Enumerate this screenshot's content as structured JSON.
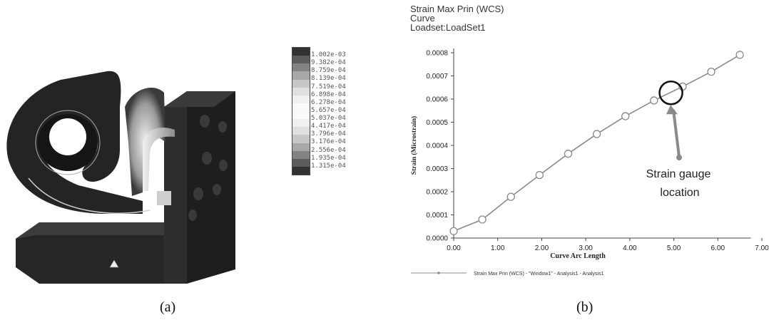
{
  "captions": {
    "a": "(a)",
    "b": "(b)"
  },
  "contour_legend": {
    "labels": [
      "1.002e-03",
      "9.382e-04",
      "8.759e-04",
      "8.139e-04",
      "7.519e-04",
      "6.898e-04",
      "6.278e-04",
      "5.657e-04",
      "5.037e-04",
      "4.417e-04",
      "3.796e-04",
      "3.176e-04",
      "2.556e-04",
      "1.935e-04",
      "1.315e-04"
    ],
    "colors": {
      "high": "#2a2a2a",
      "low": "#3a3a3a",
      "mid": "#d8d8d8"
    }
  },
  "plot_header": {
    "line1": "Strain Max Prin (WCS)",
    "line2": "Curve",
    "line3": "Loadset:LoadSet1"
  },
  "annotation": {
    "line1": "Strain gauge",
    "line2": "location"
  },
  "chart_data": {
    "type": "line",
    "xlabel": "Curve Arc Length",
    "ylabel": "Strain (Microstrain)",
    "xlim": [
      0,
      7
    ],
    "ylim": [
      0,
      0.0008
    ],
    "x_ticks": [
      "0.00",
      "1.00",
      "2.00",
      "3.00",
      "4.00",
      "5.00",
      "6.00",
      "7.00"
    ],
    "y_ticks": [
      "0.0000",
      "0.0001",
      "0.0002",
      "0.0003",
      "0.0004",
      "0.0005",
      "0.0006",
      "0.0007",
      "0.0008"
    ],
    "grid": false,
    "legend_position": "bottom-left",
    "series": [
      {
        "name": "Strain Max Prin (WCS) - \"Window1\" - Analysis1 - Analysis1",
        "color": "#8a8a8a",
        "marker": "open-circle",
        "x": [
          0.0,
          0.65,
          1.3,
          1.95,
          2.6,
          3.25,
          3.9,
          4.55,
          5.2,
          5.85,
          6.5
        ],
        "y": [
          3e-05,
          8e-05,
          0.000178,
          0.000272,
          0.000364,
          0.000449,
          0.000526,
          0.000594,
          0.000654,
          0.000718,
          0.000791
        ]
      }
    ],
    "highlight": {
      "x": 5.0,
      "y": 0.00063
    }
  }
}
